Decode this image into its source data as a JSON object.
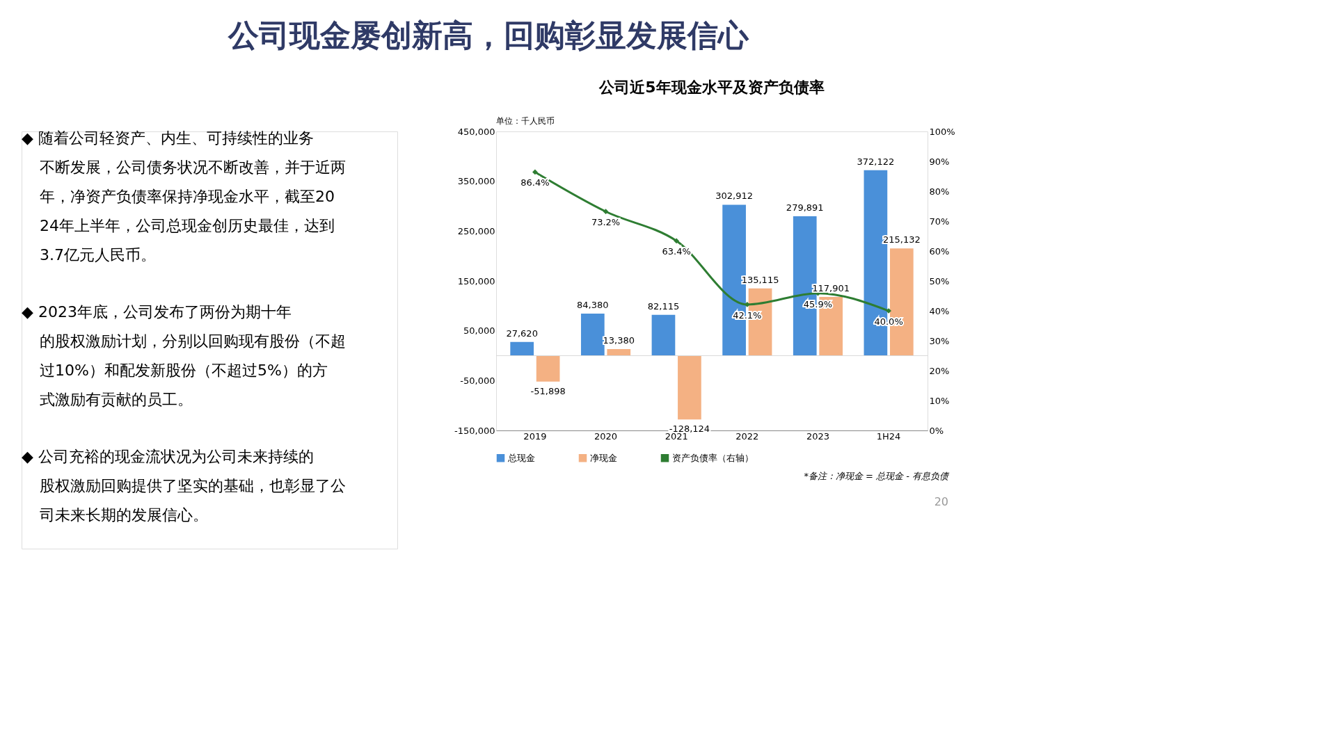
{
  "chart_data": {
    "type": "bar",
    "title": "公司现金屡创新高，回购彰显发展信心",
    "subtitle": "公司近5年现金水平及资产负债率",
    "categories": [
      "2019",
      "2020",
      "2021",
      "2022",
      "2023",
      "1H24"
    ],
    "series": [
      {
        "name": "总现金",
        "color": "#4a90d9",
        "values": [
          27620,
          84380,
          82115,
          302912,
          279891,
          372122
        ],
        "value_labels": [
          "27,620",
          "84,380",
          "82,115",
          "302,912",
          "279,891",
          "372,122"
        ]
      },
      {
        "name": "净现金",
        "color": "#f4b183",
        "values": [
          -51898,
          13380,
          -128124,
          135115,
          117901,
          215132
        ],
        "value_labels": [
          "-51,898",
          "13,380",
          "-128,124",
          "135,115",
          "117,901",
          "215,132"
        ]
      },
      {
        "name": "资产负债率（右轴）",
        "type": "line",
        "axis": "y2",
        "color": "#2e7d32",
        "marker": "diamond",
        "values": [
          86.4,
          73.2,
          63.4,
          42.1,
          45.9,
          40.0
        ],
        "value_labels": [
          "86.4%",
          "73.2%",
          "63.4%",
          "42.1%",
          "45.9%",
          "40.0%"
        ]
      }
    ],
    "ylim": [
      -150000,
      450000
    ],
    "yticks": [
      {
        "value": -150000,
        "label": "-150,000"
      },
      {
        "value": -50000,
        "label": "-50,000"
      },
      {
        "value": 50000,
        "label": "50,000"
      },
      {
        "value": 150000,
        "label": "150,000"
      },
      {
        "value": 250000,
        "label": "250,000"
      },
      {
        "value": 350000,
        "label": "350,000"
      },
      {
        "value": 450000,
        "label": "450,000"
      }
    ],
    "y2lim": [
      0,
      100
    ],
    "y2ticks": [
      {
        "value": 0,
        "label": "0%"
      },
      {
        "value": 10,
        "label": "10%"
      },
      {
        "value": 20,
        "label": "20%"
      },
      {
        "value": 30,
        "label": "30%"
      },
      {
        "value": 40,
        "label": "40%"
      },
      {
        "value": 50,
        "label": "50%"
      },
      {
        "value": 60,
        "label": "60%"
      },
      {
        "value": 70,
        "label": "70%"
      },
      {
        "value": 80,
        "label": "80%"
      },
      {
        "value": 90,
        "label": "90%"
      },
      {
        "value": 100,
        "label": "100%"
      }
    ],
    "grid": false,
    "legend": "bottom",
    "annotations": [
      "◆ 随着公司轻资产、内生、可持续性的业务不断发展，公司债务状况不断改善，并于近两年，净资产负债率保持净现金水平，截至2024年上半年，公司总现金创历史最佳，达到3.7亿元人民币。",
      "◆ 2023年底，公司发布了两份为期十年的股权激励计划，分别以回购现有股份（不超过10%）和配发新股份（不超过5%）的方式激励有贡献的员工。",
      "◆ 公司充裕的现金流状况为公司未来持续的股权激励回购提供了坚实的基础，也彰显了公司未来长期的发展信心。",
      "单位：千人民币",
      "*备注：净现金 = 总现金 - 有息负债",
      "20"
    ]
  }
}
